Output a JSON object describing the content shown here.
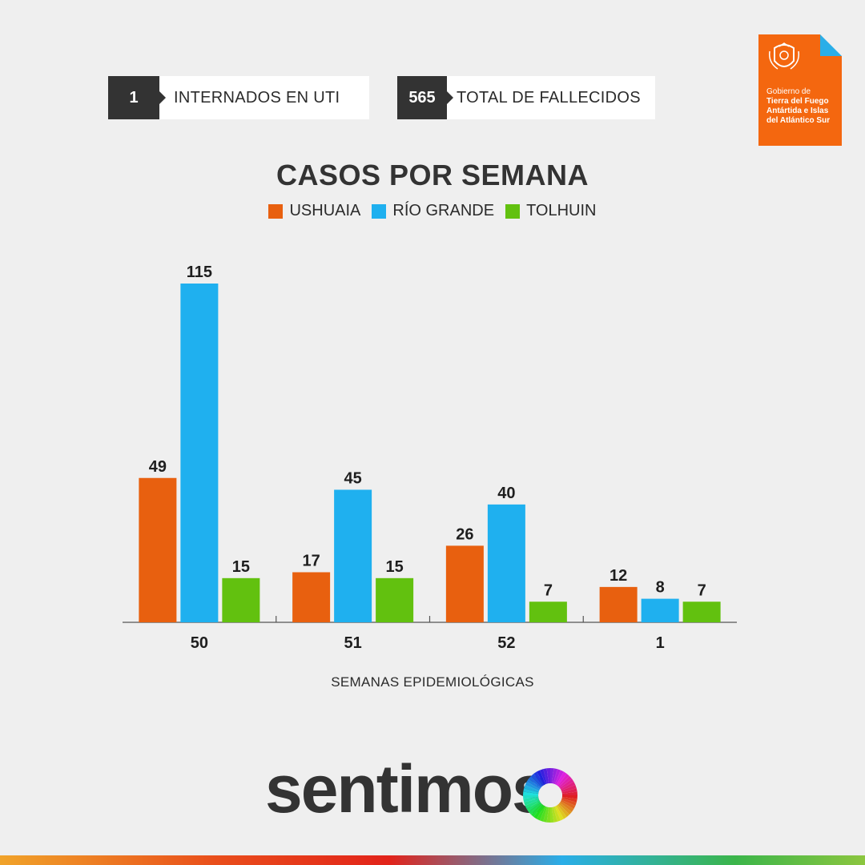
{
  "stats": {
    "uti": {
      "value": "1",
      "label": "INTERNADOS EN UTI"
    },
    "fallecidos": {
      "value": "565",
      "label": "TOTAL DE FALLECIDOS"
    }
  },
  "government_logo": {
    "line1": "Gobierno de",
    "line2": "Tierra del Fuego",
    "line3": "Antártida e Islas",
    "line4": "del Atlántico Sur",
    "color": "#f4670f",
    "accent_color": "#2aaee8"
  },
  "brand": {
    "name": "sentimos",
    "icon": "color-wheel-icon"
  },
  "colors": {
    "ushuaia": "#e8600f",
    "rio_grande": "#1fb0ef",
    "tolhuin": "#62c10f",
    "background": "#efefef"
  },
  "chart_data": {
    "type": "bar",
    "title": "CASOS POR SEMANA",
    "xlabel": "SEMANAS EPIDEMIOLÓGICAS",
    "ylabel": "",
    "categories": [
      "50",
      "51",
      "52",
      "1"
    ],
    "series": [
      {
        "name": "USHUAIA",
        "values": [
          49,
          17,
          26,
          12
        ]
      },
      {
        "name": "RÍO GRANDE",
        "values": [
          115,
          45,
          40,
          8
        ]
      },
      {
        "name": "TOLHUIN",
        "values": [
          15,
          15,
          7,
          7
        ]
      }
    ],
    "ylim": [
      0,
      115
    ],
    "grid": false,
    "legend": "top-center",
    "data_labels": true
  }
}
